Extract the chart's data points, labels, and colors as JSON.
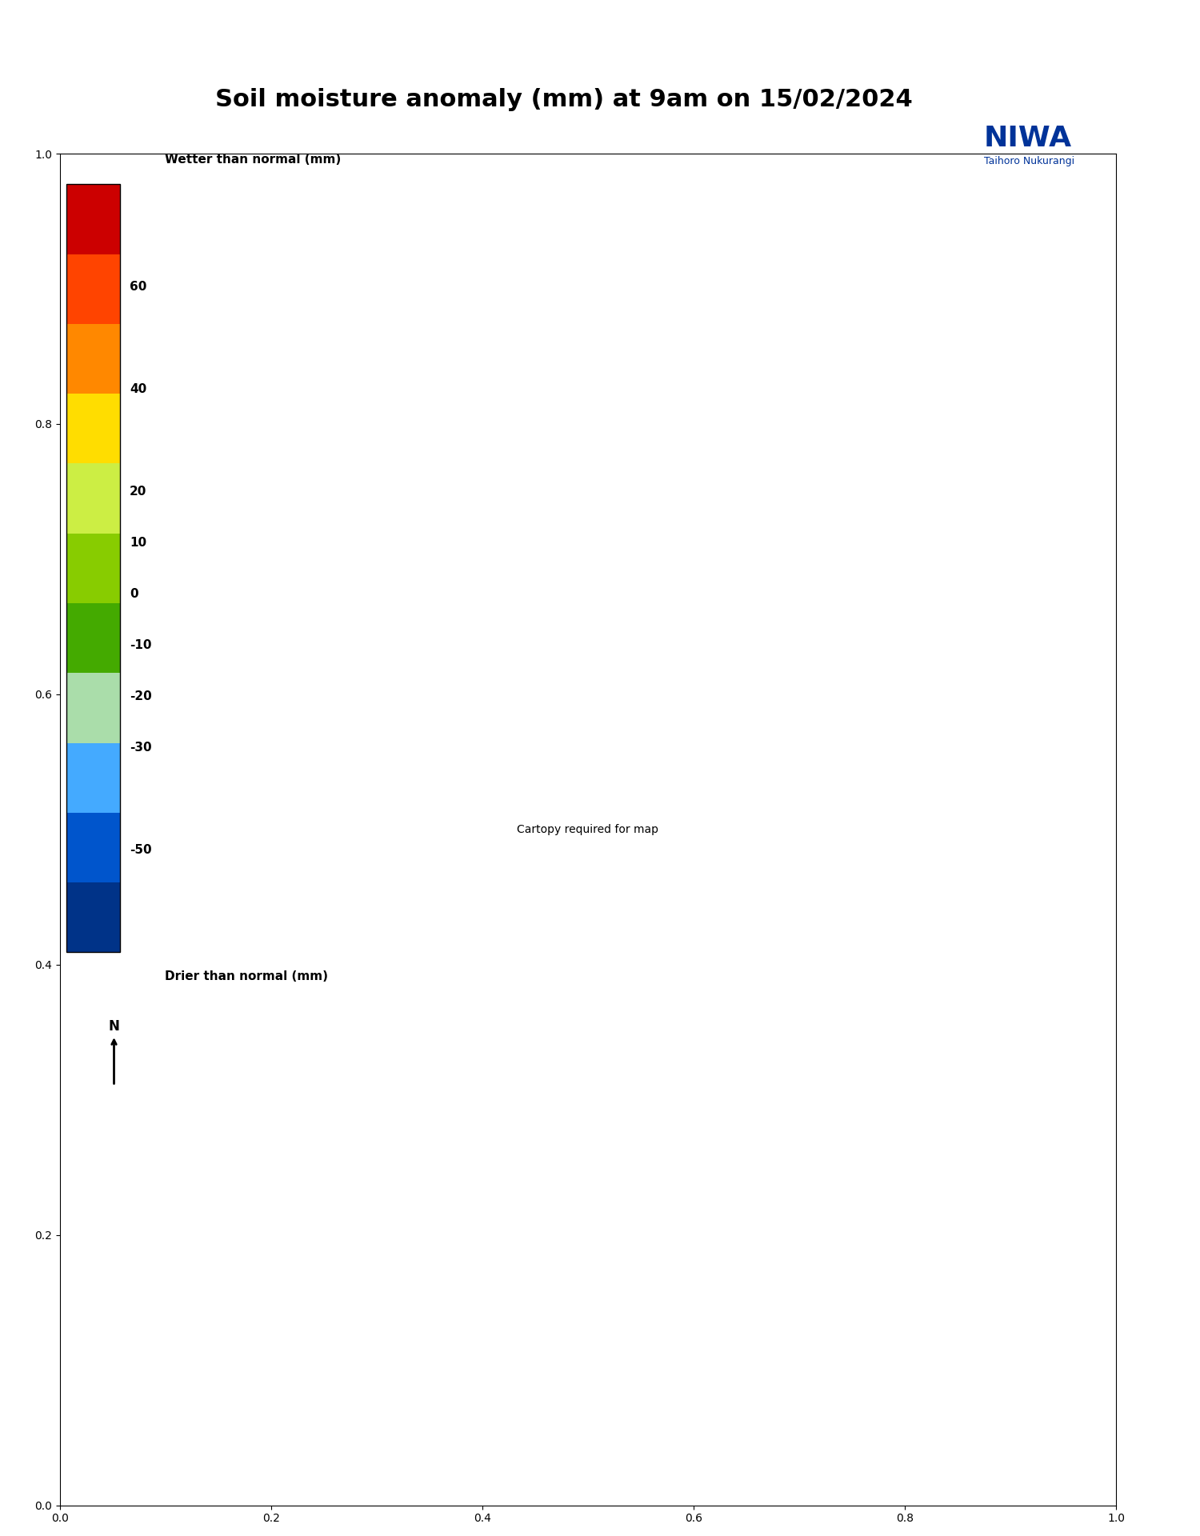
{
  "title": "Soil moisture anomaly (mm) at 9am on 15/02/2024",
  "title_fontsize": 22,
  "colorbar_levels": [
    -70,
    -50,
    -30,
    -20,
    -10,
    0,
    10,
    20,
    40,
    60,
    80
  ],
  "colorbar_colors": [
    "#cc0000",
    "#ff4400",
    "#ff8800",
    "#ffdd00",
    "#ccee44",
    "#88cc00",
    "#44aa00",
    "#aaddaa",
    "#44aaff",
    "#0055cc",
    "#003388"
  ],
  "colorbar_tick_labels": [
    "-50",
    "-30",
    "-20",
    "-10",
    "0",
    "10",
    "20",
    "40",
    "60"
  ],
  "colorbar_tick_values": [
    -50,
    -30,
    -20,
    -10,
    0,
    10,
    20,
    40,
    60
  ],
  "legend_label_top": "Wetter than normal (mm)",
  "legend_label_bottom": "Drier than normal (mm)",
  "background_color": "#ffffff",
  "map_extent": [
    166.0,
    178.5,
    -47.5,
    -34.0
  ],
  "figsize": [
    15.0,
    19.2
  ],
  "dpi": 100
}
